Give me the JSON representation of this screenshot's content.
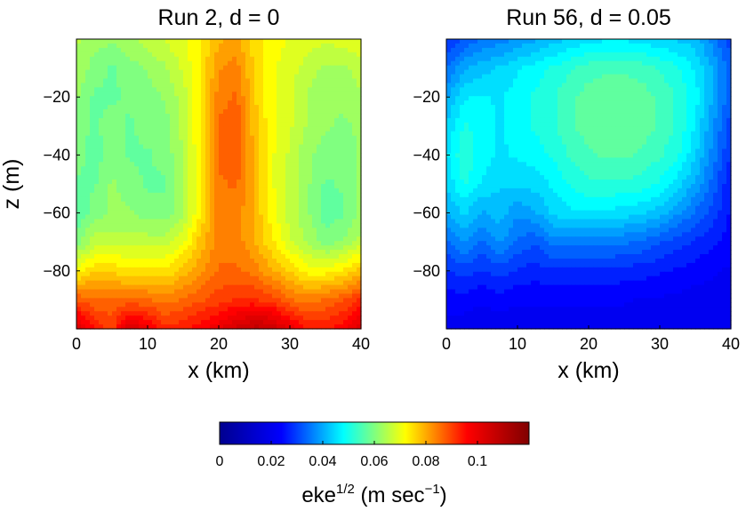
{
  "chart_data": [
    {
      "type": "heatmap",
      "title": "Run 2, d = 0",
      "xlabel": "x (km)",
      "ylabel": "z (m)",
      "xlim": [
        0,
        40
      ],
      "ylim": [
        -100,
        0
      ],
      "xticks": [
        "0",
        "10",
        "20",
        "30",
        "40"
      ],
      "yticks": [
        "−20",
        "−40",
        "−60",
        "−80"
      ],
      "x": [
        0,
        2.5,
        5,
        7.5,
        10,
        12.5,
        15,
        17.5,
        20,
        22.5,
        25,
        27.5,
        30,
        32.5,
        35,
        37.5,
        40
      ],
      "z": [
        0,
        -10,
        -20,
        -30,
        -40,
        -50,
        -60,
        -70,
        -80,
        -90,
        -100
      ],
      "values": [
        [
          0.065,
          0.063,
          0.062,
          0.064,
          0.066,
          0.068,
          0.07,
          0.074,
          0.079,
          0.08,
          0.075,
          0.072,
          0.07,
          0.069,
          0.068,
          0.069,
          0.07
        ],
        [
          0.064,
          0.06,
          0.058,
          0.06,
          0.062,
          0.064,
          0.068,
          0.074,
          0.082,
          0.084,
          0.076,
          0.071,
          0.069,
          0.066,
          0.064,
          0.064,
          0.066
        ],
        [
          0.062,
          0.058,
          0.058,
          0.059,
          0.06,
          0.062,
          0.066,
          0.074,
          0.084,
          0.086,
          0.077,
          0.071,
          0.068,
          0.064,
          0.062,
          0.062,
          0.064
        ],
        [
          0.06,
          0.058,
          0.06,
          0.058,
          0.06,
          0.06,
          0.066,
          0.074,
          0.086,
          0.088,
          0.078,
          0.071,
          0.068,
          0.064,
          0.062,
          0.061,
          0.062
        ],
        [
          0.06,
          0.057,
          0.06,
          0.058,
          0.058,
          0.06,
          0.064,
          0.074,
          0.086,
          0.088,
          0.079,
          0.071,
          0.067,
          0.062,
          0.06,
          0.06,
          0.062
        ],
        [
          0.058,
          0.058,
          0.062,
          0.06,
          0.058,
          0.058,
          0.064,
          0.074,
          0.085,
          0.086,
          0.079,
          0.071,
          0.066,
          0.062,
          0.058,
          0.059,
          0.062
        ],
        [
          0.056,
          0.06,
          0.062,
          0.062,
          0.06,
          0.06,
          0.064,
          0.074,
          0.084,
          0.084,
          0.079,
          0.072,
          0.066,
          0.062,
          0.057,
          0.058,
          0.062
        ],
        [
          0.06,
          0.066,
          0.066,
          0.066,
          0.066,
          0.066,
          0.07,
          0.078,
          0.084,
          0.084,
          0.08,
          0.074,
          0.068,
          0.064,
          0.06,
          0.062,
          0.066
        ],
        [
          0.072,
          0.076,
          0.076,
          0.074,
          0.074,
          0.074,
          0.078,
          0.082,
          0.086,
          0.086,
          0.084,
          0.08,
          0.076,
          0.072,
          0.072,
          0.074,
          0.078
        ],
        [
          0.088,
          0.086,
          0.086,
          0.086,
          0.086,
          0.084,
          0.086,
          0.088,
          0.09,
          0.092,
          0.092,
          0.09,
          0.086,
          0.084,
          0.086,
          0.088,
          0.092
        ],
        [
          0.104,
          0.094,
          0.09,
          0.104,
          0.098,
          0.092,
          0.094,
          0.096,
          0.1,
          0.104,
          0.108,
          0.106,
          0.1,
          0.094,
          0.094,
          0.096,
          0.104
        ]
      ]
    },
    {
      "type": "heatmap",
      "title": "Run 56, d = 0.05",
      "xlabel": "x (km)",
      "ylabel": "",
      "xlim": [
        0,
        40
      ],
      "ylim": [
        -100,
        0
      ],
      "xticks": [
        "0",
        "10",
        "20",
        "30",
        "40"
      ],
      "yticks": [
        "−20",
        "−40",
        "−60",
        "−80"
      ],
      "x": [
        0,
        2.5,
        5,
        7.5,
        10,
        12.5,
        15,
        17.5,
        20,
        22.5,
        25,
        27.5,
        30,
        32.5,
        35,
        37.5,
        40
      ],
      "z": [
        0,
        -10,
        -20,
        -30,
        -40,
        -50,
        -60,
        -70,
        -80,
        -90,
        -100
      ],
      "values": [
        [
          0.028,
          0.032,
          0.035,
          0.036,
          0.038,
          0.04,
          0.042,
          0.044,
          0.045,
          0.046,
          0.046,
          0.045,
          0.044,
          0.043,
          0.042,
          0.036,
          0.03
        ],
        [
          0.034,
          0.04,
          0.042,
          0.044,
          0.046,
          0.048,
          0.05,
          0.052,
          0.054,
          0.055,
          0.055,
          0.054,
          0.052,
          0.05,
          0.046,
          0.04,
          0.032
        ],
        [
          0.04,
          0.046,
          0.047,
          0.046,
          0.048,
          0.05,
          0.052,
          0.055,
          0.057,
          0.058,
          0.058,
          0.057,
          0.055,
          0.052,
          0.048,
          0.04,
          0.032
        ],
        [
          0.044,
          0.05,
          0.048,
          0.046,
          0.048,
          0.05,
          0.052,
          0.055,
          0.057,
          0.058,
          0.058,
          0.057,
          0.055,
          0.052,
          0.046,
          0.038,
          0.03
        ],
        [
          0.046,
          0.052,
          0.048,
          0.046,
          0.047,
          0.048,
          0.05,
          0.053,
          0.055,
          0.056,
          0.056,
          0.055,
          0.053,
          0.05,
          0.044,
          0.036,
          0.028
        ],
        [
          0.044,
          0.05,
          0.046,
          0.044,
          0.044,
          0.045,
          0.047,
          0.05,
          0.052,
          0.052,
          0.052,
          0.051,
          0.049,
          0.045,
          0.04,
          0.033,
          0.026
        ],
        [
          0.04,
          0.044,
          0.04,
          0.042,
          0.038,
          0.04,
          0.044,
          0.046,
          0.046,
          0.046,
          0.045,
          0.044,
          0.042,
          0.038,
          0.034,
          0.03,
          0.025
        ],
        [
          0.034,
          0.038,
          0.034,
          0.038,
          0.034,
          0.032,
          0.036,
          0.036,
          0.036,
          0.036,
          0.035,
          0.034,
          0.032,
          0.03,
          0.028,
          0.026,
          0.024
        ],
        [
          0.028,
          0.03,
          0.028,
          0.03,
          0.028,
          0.027,
          0.028,
          0.028,
          0.028,
          0.028,
          0.027,
          0.027,
          0.026,
          0.025,
          0.024,
          0.023,
          0.022
        ],
        [
          0.024,
          0.024,
          0.023,
          0.024,
          0.023,
          0.023,
          0.023,
          0.023,
          0.023,
          0.023,
          0.023,
          0.022,
          0.022,
          0.022,
          0.021,
          0.021,
          0.021
        ],
        [
          0.021,
          0.021,
          0.02,
          0.021,
          0.02,
          0.02,
          0.02,
          0.02,
          0.02,
          0.02,
          0.02,
          0.02,
          0.02,
          0.02,
          0.02,
          0.02,
          0.02
        ]
      ]
    }
  ],
  "colorbar": {
    "label": "eke",
    "label_sup": "1/2",
    "label_unit_start": " (m sec",
    "label_unit_sup": "−1",
    "label_unit_end": ")",
    "range": [
      0,
      0.12
    ],
    "ticks": [
      "0",
      "0.02",
      "0.04",
      "0.06",
      "0.08",
      "0.1"
    ],
    "colormap": "jet",
    "colors": [
      "#00008f",
      "#0000ff",
      "#00ffff",
      "#ffff00",
      "#ff0000",
      "#800000"
    ]
  }
}
